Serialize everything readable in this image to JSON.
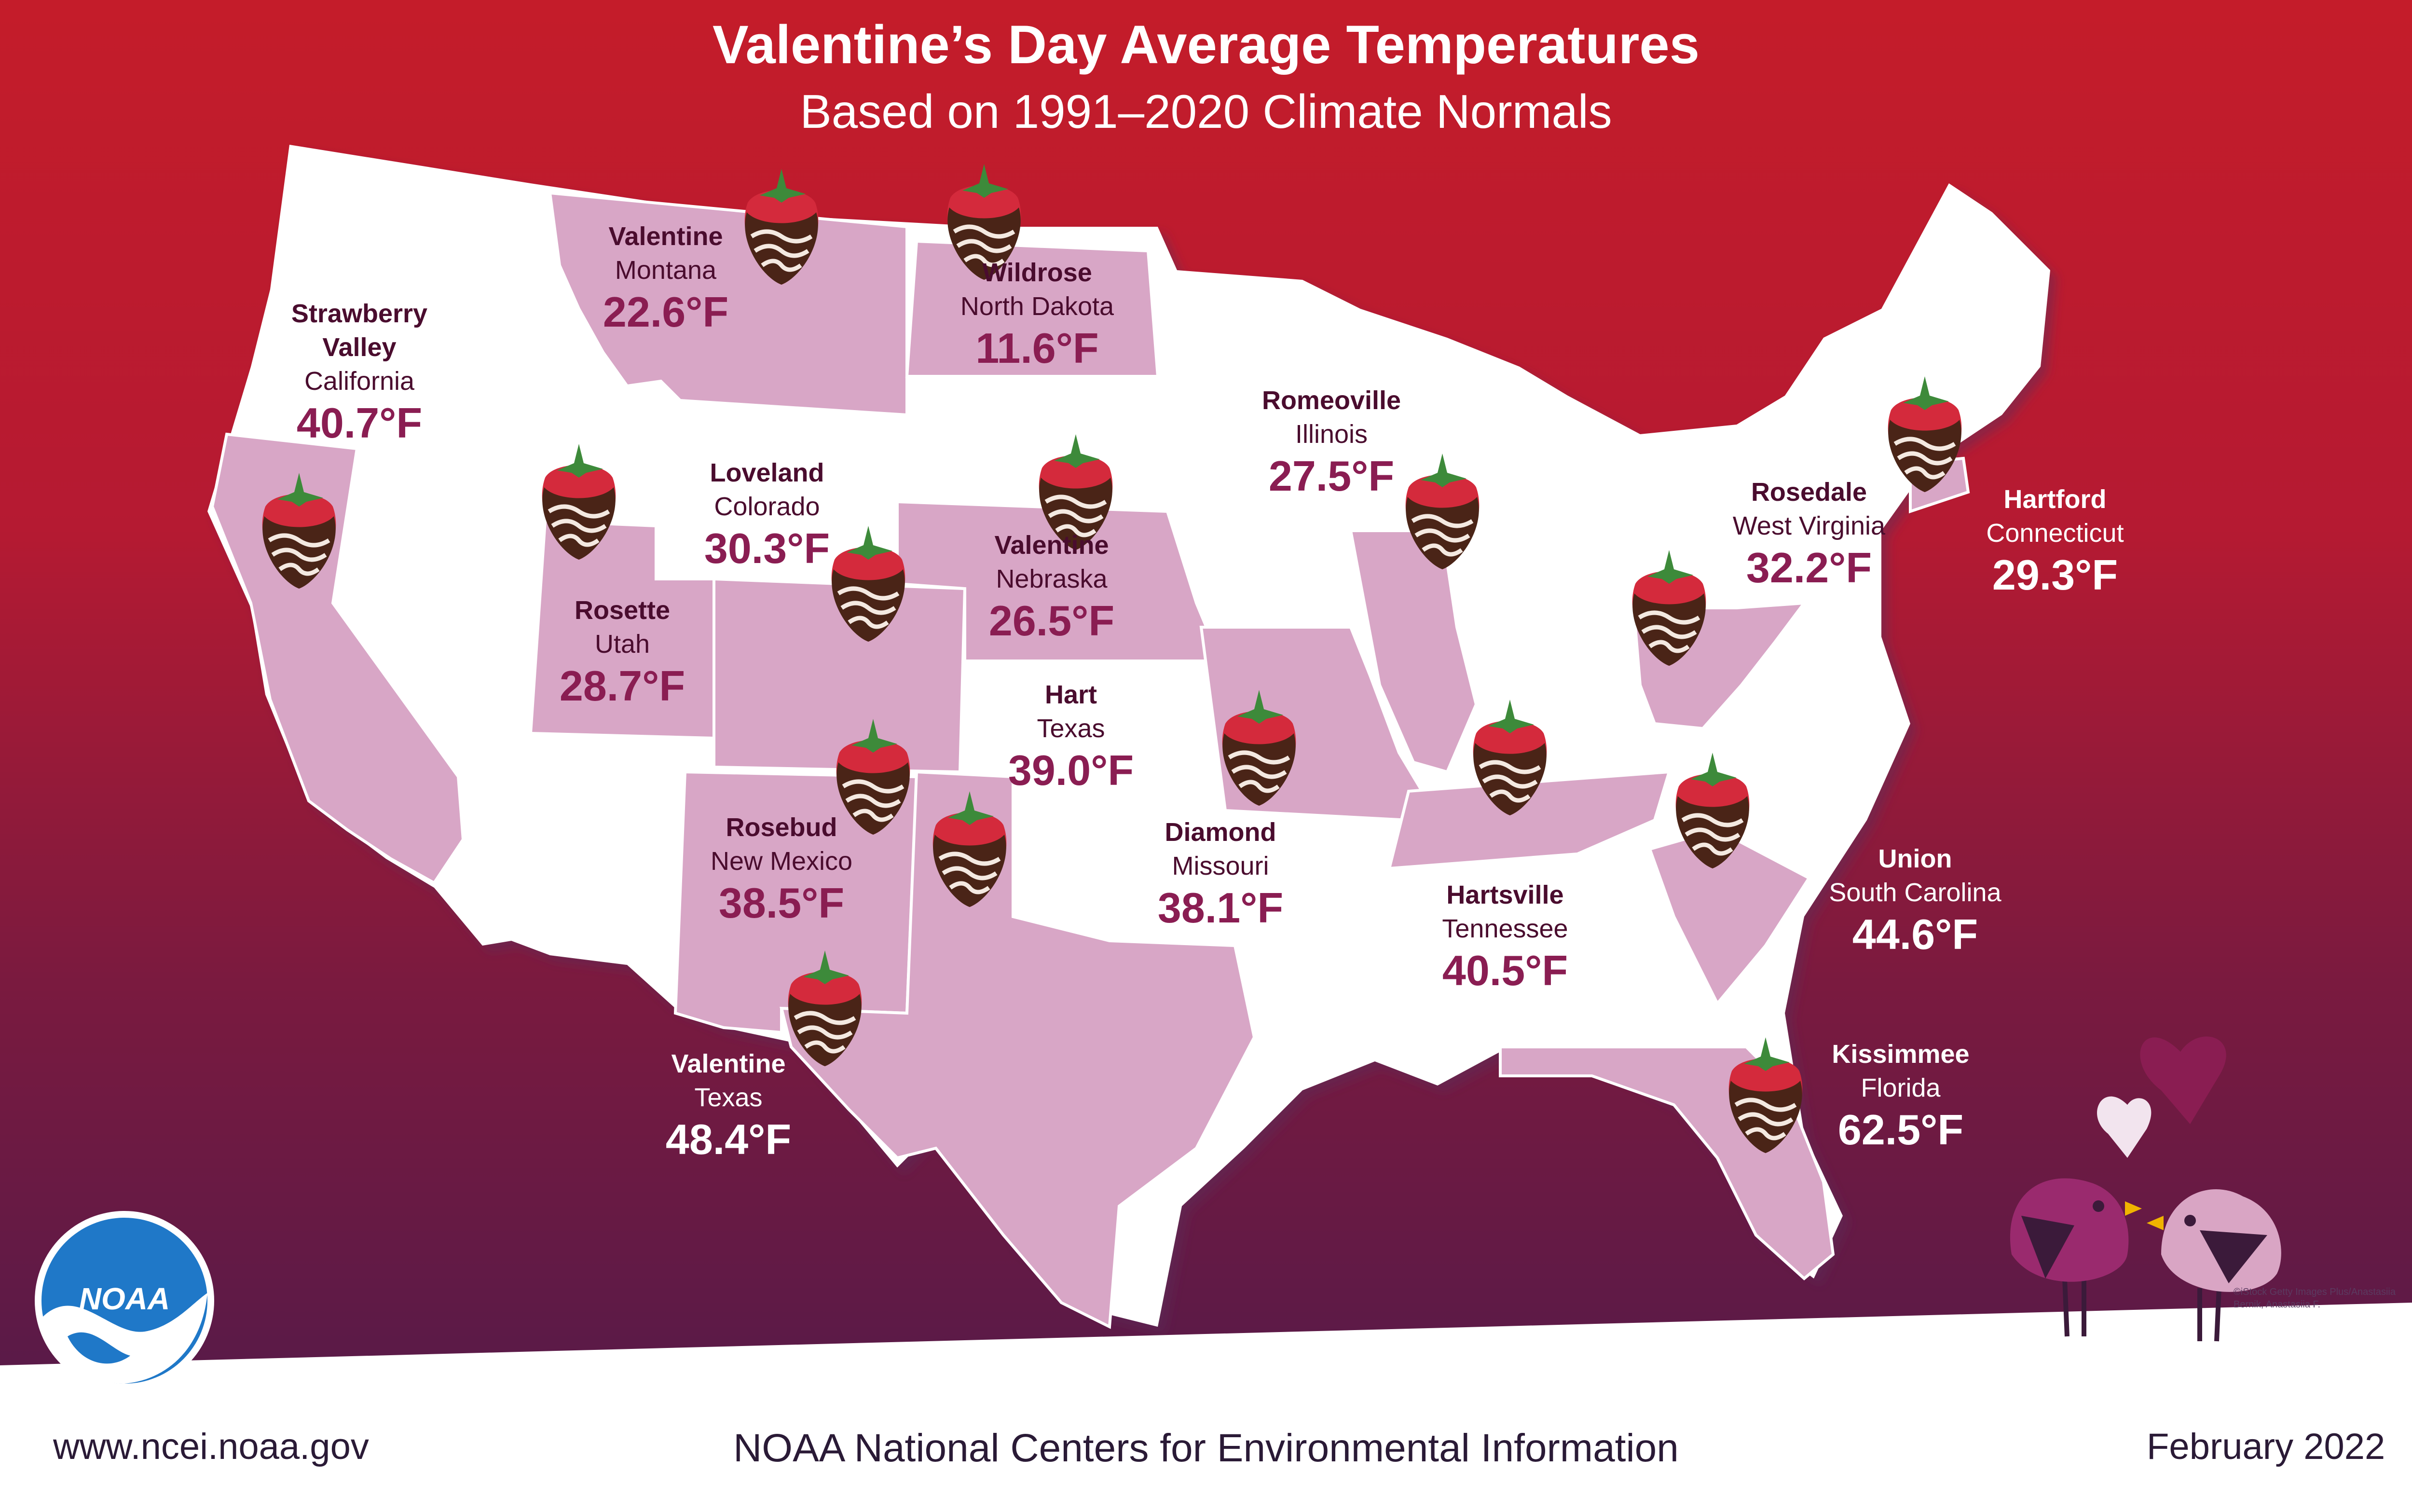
{
  "header": {
    "title": "Valentine’s Day Average Temperatures",
    "subtitle": "Based on 1991–2020 Climate Normals"
  },
  "colors": {
    "background_top": "#c41c2a",
    "background_bottom": "#4e1a4b",
    "map_land": "#ffffff",
    "highlight_state": "#d8a6c6",
    "label_dark": "#4a0c2e",
    "temp_accent": "#8a1d52",
    "footer_band": "#ffffff"
  },
  "map": {
    "highlighted_states": [
      "California",
      "Montana",
      "North Dakota",
      "Utah",
      "Colorado",
      "Nebraska",
      "New Mexico",
      "Texas",
      "Missouri",
      "Illinois",
      "Tennessee",
      "West Virginia",
      "South Carolina",
      "Florida",
      "Connecticut"
    ],
    "locations": [
      {
        "city": "Strawberry Valley",
        "state": "California",
        "temp": "40.7°F",
        "label_style": "dark"
      },
      {
        "city": "Valentine",
        "state": "Montana",
        "temp": "22.6°F",
        "label_style": "dark"
      },
      {
        "city": "Wildrose",
        "state": "North Dakota",
        "temp": "11.6°F",
        "label_style": "dark"
      },
      {
        "city": "Loveland",
        "state": "Colorado",
        "temp": "30.3°F",
        "label_style": "dark"
      },
      {
        "city": "Rosette",
        "state": "Utah",
        "temp": "28.7°F",
        "label_style": "dark"
      },
      {
        "city": "Valentine",
        "state": "Nebraska",
        "temp": "26.5°F",
        "label_style": "dark"
      },
      {
        "city": "Romeoville",
        "state": "Illinois",
        "temp": "27.5°F",
        "label_style": "dark"
      },
      {
        "city": "Hart",
        "state": "Texas",
        "temp": "39.0°F",
        "label_style": "dark"
      },
      {
        "city": "Rosebud",
        "state": "New Mexico",
        "temp": "38.5°F",
        "label_style": "dark"
      },
      {
        "city": "Diamond",
        "state": "Missouri",
        "temp": "38.1°F",
        "label_style": "dark"
      },
      {
        "city": "Rosedale",
        "state": "West Virginia",
        "temp": "32.2°F",
        "label_style": "dark"
      },
      {
        "city": "Hartford",
        "state": "Connecticut",
        "temp": "29.3°F",
        "label_style": "light"
      },
      {
        "city": "Hartsville",
        "state": "Tennessee",
        "temp": "40.5°F",
        "label_style": "dark"
      },
      {
        "city": "Union",
        "state": "South Carolina",
        "temp": "44.6°F",
        "label_style": "light"
      },
      {
        "city": "Valentine",
        "state": "Texas",
        "temp": "48.4°F",
        "label_style": "light"
      },
      {
        "city": "Kissimmee",
        "state": "Florida",
        "temp": "62.5°F",
        "label_style": "light"
      }
    ],
    "icons": [
      "strawberry-icon",
      "heart-icon",
      "lovebird-icon"
    ]
  },
  "logo": {
    "text": "NOAA"
  },
  "credit": {
    "line1": "©iStock Getty Images Plus/Anastasiia",
    "line2": "Bernik, Anastasiia F."
  },
  "footer": {
    "url": "www.ncei.noaa.gov",
    "organization": "NOAA National Centers for Environmental Information",
    "date": "February 2022"
  }
}
